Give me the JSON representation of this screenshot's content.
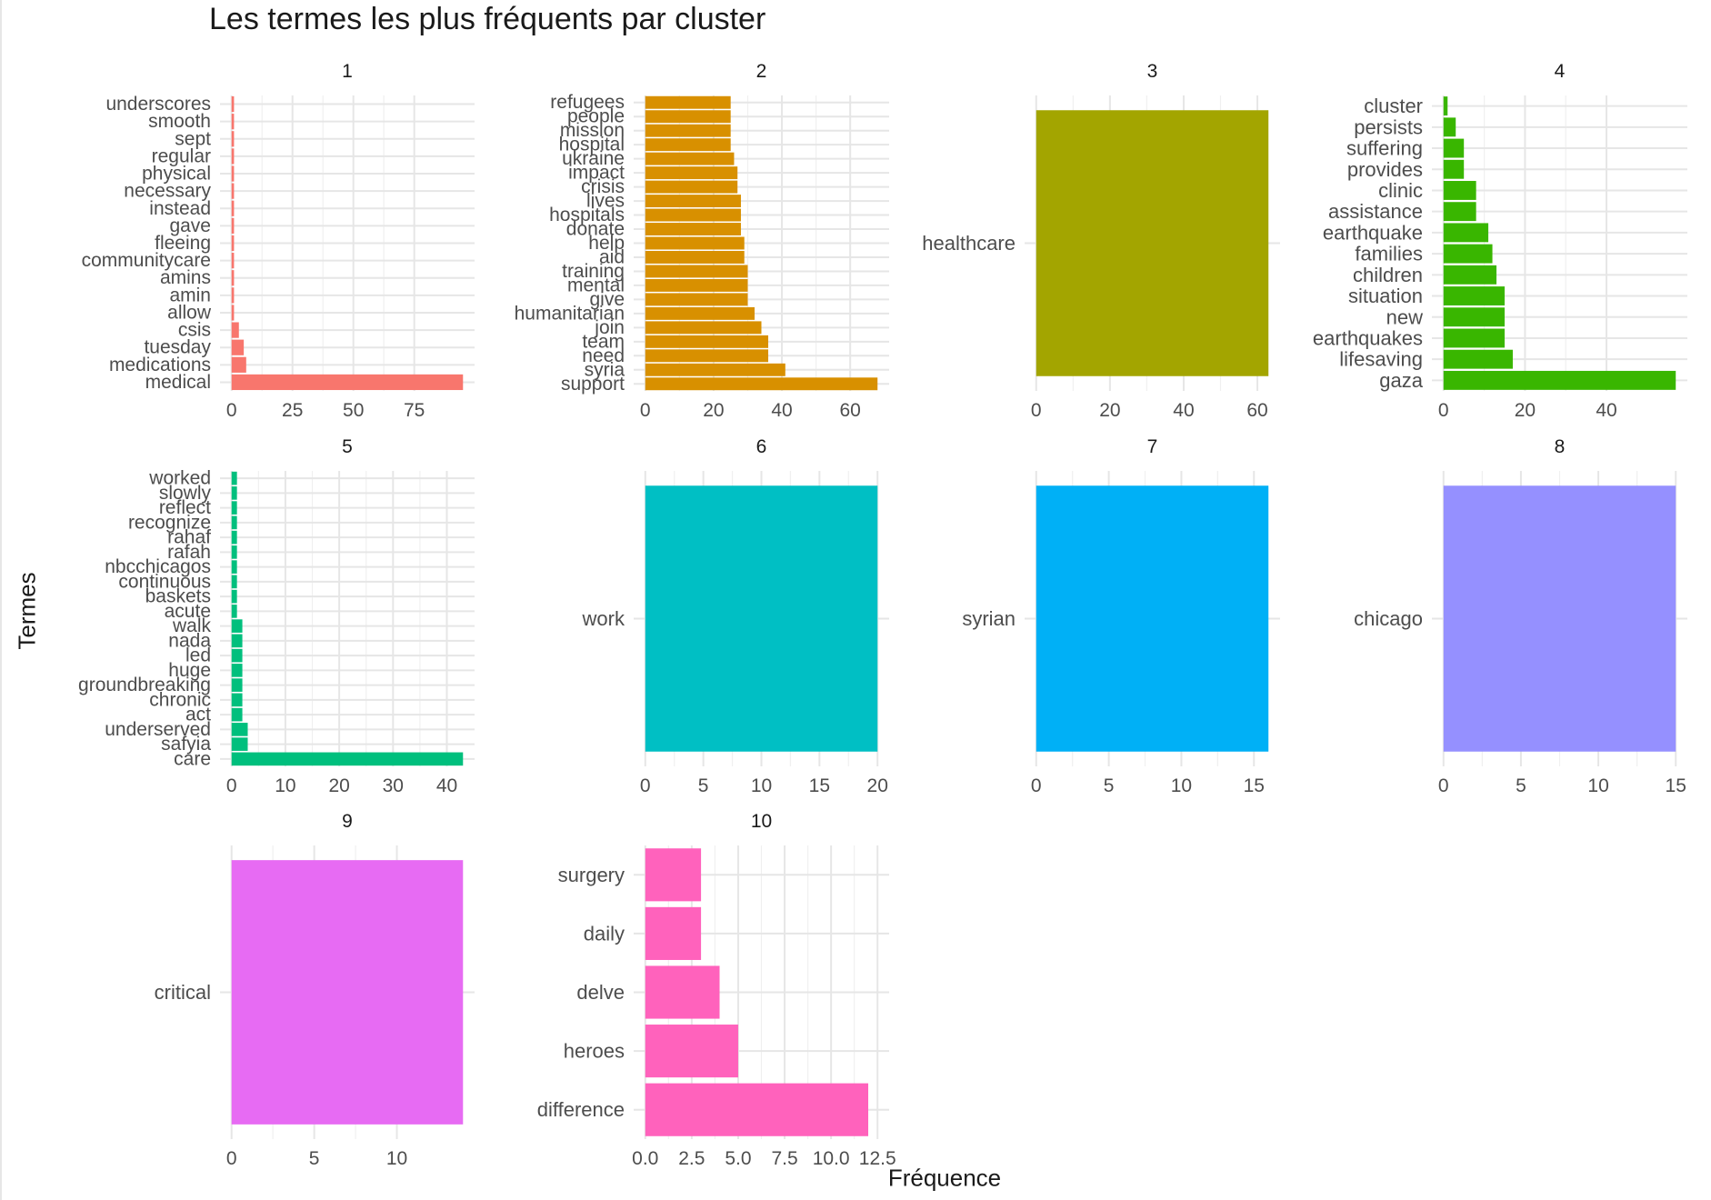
{
  "chart_data": {
    "type": "bar",
    "orientation": "horizontal",
    "title": "Les termes les plus fréquents par cluster",
    "xlabel": "Fréquence",
    "ylabel": "Termes",
    "grid": true,
    "panels": [
      {
        "name": "1",
        "color": "#F8766D",
        "categories": [
          "medical",
          "medications",
          "tuesday",
          "csis",
          "allow",
          "amin",
          "amins",
          "communitycare",
          "fleeing",
          "gave",
          "instead",
          "necessary",
          "physical",
          "regular",
          "sept",
          "smooth",
          "underscores"
        ],
        "values": [
          95,
          6,
          5,
          3,
          1,
          1,
          1,
          1,
          1,
          1,
          1,
          1,
          1,
          1,
          1,
          1,
          1
        ],
        "xlim": [
          0,
          95
        ],
        "ticks": [
          0,
          25,
          50,
          75
        ],
        "tick_labels": [
          "0",
          "25",
          "50",
          "75"
        ]
      },
      {
        "name": "2",
        "color": "#D89000",
        "categories": [
          "support",
          "syria",
          "need",
          "team",
          "join",
          "humanitarian",
          "give",
          "mental",
          "training",
          "aid",
          "help",
          "donate",
          "hospitals",
          "lives",
          "crisis",
          "impact",
          "ukraine",
          "hospital",
          "mission",
          "people",
          "refugees"
        ],
        "values": [
          68,
          41,
          36,
          36,
          34,
          32,
          30,
          30,
          30,
          29,
          29,
          28,
          28,
          28,
          27,
          27,
          26,
          25,
          25,
          25,
          25
        ],
        "xlim": [
          0,
          68
        ],
        "ticks": [
          0,
          20,
          40,
          60
        ],
        "tick_labels": [
          "0",
          "20",
          "40",
          "60"
        ]
      },
      {
        "name": "3",
        "color": "#A3A500",
        "categories": [
          "healthcare"
        ],
        "values": [
          63
        ],
        "xlim": [
          0,
          63
        ],
        "ticks": [
          0,
          20,
          40,
          60
        ],
        "tick_labels": [
          "0",
          "20",
          "40",
          "60"
        ]
      },
      {
        "name": "4",
        "color": "#39B600",
        "categories": [
          "gaza",
          "lifesaving",
          "earthquakes",
          "new",
          "situation",
          "children",
          "families",
          "earthquake",
          "assistance",
          "clinic",
          "provides",
          "suffering",
          "persists",
          "cluster"
        ],
        "values": [
          57,
          17,
          15,
          15,
          15,
          13,
          12,
          11,
          8,
          8,
          5,
          5,
          3,
          1
        ],
        "xlim": [
          0,
          57
        ],
        "ticks": [
          0,
          20,
          40
        ],
        "tick_labels": [
          "0",
          "20",
          "40"
        ]
      },
      {
        "name": "5",
        "color": "#00BF7D",
        "categories": [
          "care",
          "safyia",
          "underserved",
          "act",
          "chronic",
          "groundbreaking",
          "huge",
          "led",
          "nada",
          "walk",
          "acute",
          "baskets",
          "continuous",
          "nbcchicagos",
          "rafah",
          "rahaf",
          "recognize",
          "reflect",
          "slowly",
          "worked"
        ],
        "values": [
          43,
          3,
          3,
          2,
          2,
          2,
          2,
          2,
          2,
          2,
          1,
          1,
          1,
          1,
          1,
          1,
          1,
          1,
          1,
          1
        ],
        "xlim": [
          0,
          43
        ],
        "ticks": [
          0,
          10,
          20,
          30,
          40
        ],
        "tick_labels": [
          "0",
          "10",
          "20",
          "30",
          "40"
        ]
      },
      {
        "name": "6",
        "color": "#00BFC4",
        "categories": [
          "work"
        ],
        "values": [
          20
        ],
        "xlim": [
          0,
          20
        ],
        "ticks": [
          0,
          5,
          10,
          15,
          20
        ],
        "tick_labels": [
          "0",
          "5",
          "10",
          "15",
          "20"
        ]
      },
      {
        "name": "7",
        "color": "#00B0F6",
        "categories": [
          "syrian"
        ],
        "values": [
          16
        ],
        "xlim": [
          0,
          16
        ],
        "ticks": [
          0,
          5,
          10,
          15
        ],
        "tick_labels": [
          "0",
          "5",
          "10",
          "15"
        ]
      },
      {
        "name": "8",
        "color": "#9590FF",
        "categories": [
          "chicago"
        ],
        "values": [
          15
        ],
        "xlim": [
          0,
          15
        ],
        "ticks": [
          0,
          5,
          10,
          15
        ],
        "tick_labels": [
          "0",
          "5",
          "10",
          "15"
        ]
      },
      {
        "name": "9",
        "color": "#E76BF3",
        "categories": [
          "critical"
        ],
        "values": [
          14
        ],
        "xlim": [
          0,
          14
        ],
        "ticks": [
          0,
          5,
          10
        ],
        "tick_labels": [
          "0",
          "5",
          "10"
        ]
      },
      {
        "name": "10",
        "color": "#FF62BC",
        "categories": [
          "difference",
          "heroes",
          "delve",
          "daily",
          "surgery"
        ],
        "values": [
          12,
          5,
          4,
          3,
          3
        ],
        "xlim": [
          0,
          12
        ],
        "ticks": [
          0,
          2.5,
          5,
          7.5,
          10,
          12.5
        ],
        "tick_labels": [
          "0.0",
          "2.5",
          "5.0",
          "7.5",
          "10.0",
          "12.5"
        ]
      }
    ]
  }
}
